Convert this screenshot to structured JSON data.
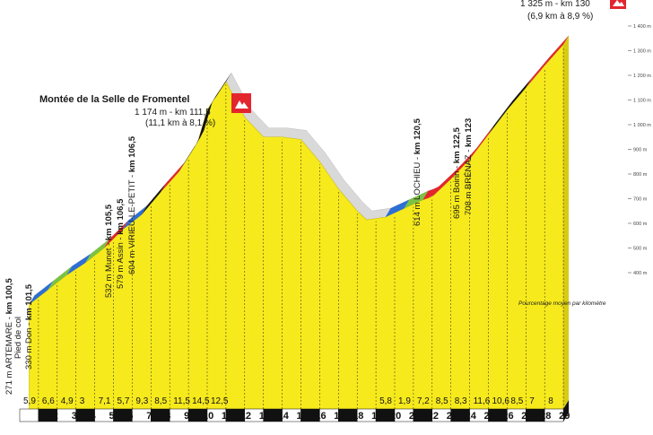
{
  "chart_data": {
    "type": "area",
    "subtitle": "Pourcentage moyen par kilomètre",
    "y_ticks": [
      "400 m",
      "500 m",
      "600 m",
      "700 m",
      "800 m",
      "900 m",
      "1 000 m",
      "1 100 m",
      "1 200 m",
      "1 300 m",
      "1 400 m"
    ],
    "km_labels": [
      "2",
      "3",
      "4",
      "5",
      "6",
      "7",
      "8",
      "9",
      "10",
      "11",
      "12",
      "13",
      "14",
      "15",
      "16",
      "17",
      "18",
      "19",
      "20",
      "21",
      "22",
      "23",
      "24",
      "25",
      "26",
      "27",
      "28",
      "29"
    ],
    "percent_labels": [
      {
        "km": 1,
        "value": "5,9"
      },
      {
        "km": 2,
        "value": "6,6"
      },
      {
        "km": 3,
        "value": "4,9"
      },
      {
        "km": 4,
        "value": "3"
      },
      {
        "km": 5,
        "value": "7,1"
      },
      {
        "km": 6,
        "value": "5,7"
      },
      {
        "km": 7,
        "value": "9,3"
      },
      {
        "km": 8,
        "value": "8,5"
      },
      {
        "km": 9,
        "value": "11,5"
      },
      {
        "km": 10,
        "value": "14,5"
      },
      {
        "km": 11,
        "value": "12,5"
      },
      {
        "km": 20,
        "value": "5,8"
      },
      {
        "km": 21,
        "value": "1,9"
      },
      {
        "km": 22,
        "value": "7,2"
      },
      {
        "km": 23,
        "value": "8,5"
      },
      {
        "km": 24,
        "value": "8,3"
      },
      {
        "km": 25,
        "value": "11,6"
      },
      {
        "km": 26,
        "value": "10,6"
      },
      {
        "km": 27,
        "value": "8,5"
      },
      {
        "km": 28,
        "value": "7"
      },
      {
        "km": 29,
        "value": "8"
      }
    ],
    "profile": [
      {
        "km": 0.5,
        "alt": 271
      },
      {
        "km": 1.5,
        "alt": 330
      },
      {
        "km": 2.5,
        "alt": 390
      },
      {
        "km": 3.5,
        "alt": 440
      },
      {
        "km": 4.5,
        "alt": 500
      },
      {
        "km": 5.5,
        "alt": 575
      },
      {
        "km": 6.5,
        "alt": 635
      },
      {
        "km": 7.5,
        "alt": 725
      },
      {
        "km": 8.5,
        "alt": 810
      },
      {
        "km": 9.5,
        "alt": 930
      },
      {
        "km": 10,
        "alt": 1060
      },
      {
        "km": 11,
        "alt": 1174
      },
      {
        "km": 12,
        "alt": 1030
      },
      {
        "km": 13,
        "alt": 950
      },
      {
        "km": 14,
        "alt": 950
      },
      {
        "km": 15,
        "alt": 940
      },
      {
        "km": 16,
        "alt": 850
      },
      {
        "km": 17,
        "alt": 740
      },
      {
        "km": 18,
        "alt": 650
      },
      {
        "km": 18.5,
        "alt": 614
      },
      {
        "km": 19.5,
        "alt": 625
      },
      {
        "km": 20.5,
        "alt": 660
      },
      {
        "km": 21.5,
        "alt": 695
      },
      {
        "km": 22,
        "alt": 708
      },
      {
        "km": 23,
        "alt": 780
      },
      {
        "km": 24,
        "alt": 860
      },
      {
        "km": 25,
        "alt": 960
      },
      {
        "km": 26,
        "alt": 1060
      },
      {
        "km": 27,
        "alt": 1150
      },
      {
        "km": 28,
        "alt": 1240
      },
      {
        "km": 29,
        "alt": 1325
      }
    ],
    "segments": [
      {
        "from": 0.5,
        "to": 1.5,
        "color": "#2e6fd4"
      },
      {
        "from": 1.5,
        "to": 2.5,
        "color": "#7cc242"
      },
      {
        "from": 2.5,
        "to": 3.5,
        "color": "#2e6fd4"
      },
      {
        "from": 3.5,
        "to": 4.5,
        "color": "#7cc242"
      },
      {
        "from": 4.5,
        "to": 5.5,
        "color": "#e3262e"
      },
      {
        "from": 5.5,
        "to": 6.5,
        "color": "#2e6fd4"
      },
      {
        "from": 6.5,
        "to": 7.5,
        "color": "#111111"
      },
      {
        "from": 7.5,
        "to": 8.5,
        "color": "#e3262e"
      },
      {
        "from": 8.5,
        "to": 11,
        "color": "#111111"
      },
      {
        "from": 19.5,
        "to": 20.5,
        "color": "#2e6fd4"
      },
      {
        "from": 20.5,
        "to": 21.5,
        "color": "#7cc242"
      },
      {
        "from": 21.5,
        "to": 25,
        "color": "#e3262e"
      },
      {
        "from": 25,
        "to": 27,
        "color": "#111111"
      },
      {
        "from": 27,
        "to": 29,
        "color": "#e3262e"
      }
    ],
    "annotations": {
      "climb_title": "Montée de la Selle de Fromentel",
      "summit1_line1": "1 174 m - km 111,5",
      "summit1_line2": "(11,1 km à 8,1 %)",
      "summit2_line1": "1 325 m - km 130",
      "summit2_line2": "(6,9 km à 8,9 %)",
      "artemare_a": "271 m ARTEMARE - ",
      "artemare_b": "km 100,5",
      "pied_de_col": "Pied de col",
      "don_a": "330 m Don - ",
      "don_b": "km 101,5",
      "munet_a": "532 m Munet - ",
      "munet_b": "km 105,5",
      "assin_a": "579 m Assin - ",
      "assin_b": "km 106,5",
      "virieu_a": "604 m VIRIEU-LE-PETIT - ",
      "virieu_b": "km 106,5",
      "lochieu_a": "614 m LOCHIEU - ",
      "lochieu_b": "km 120,5",
      "boirin_a": "695 m Boirin - ",
      "boirin_b": "km 122,5",
      "brenaz_a": "708 m BRÉNAZ - ",
      "brenaz_b": "km 123"
    },
    "colors": {
      "fill": "#f7ea1c",
      "road": "#111111",
      "axis": "#222222"
    }
  }
}
